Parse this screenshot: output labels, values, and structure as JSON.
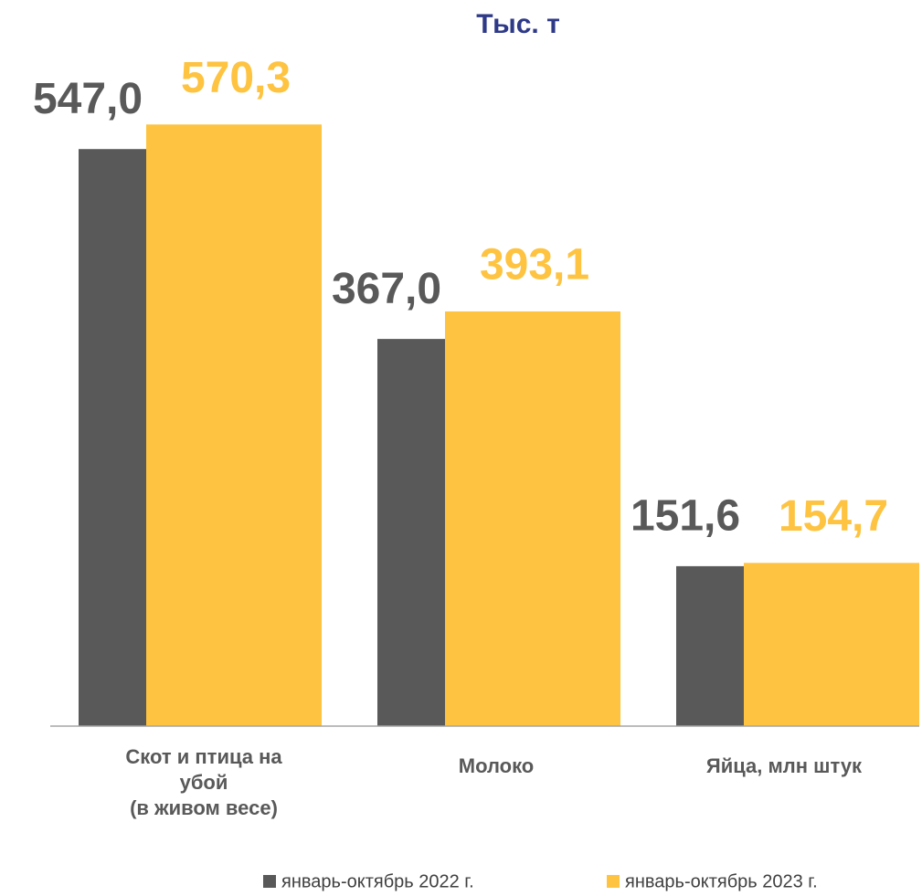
{
  "chart_data": {
    "type": "bar",
    "title": "Тыс. т",
    "categories": [
      "Скот и птица на\nубой\n(в живом весе)",
      "Молоко",
      "Яйца,  млн штук"
    ],
    "series": [
      {
        "name": "январь-октябрь 2022 г.",
        "color": "#595959",
        "values": [
          547.0,
          367.0,
          151.6
        ],
        "value_labels": [
          "547,0",
          "367,0",
          "151,6"
        ]
      },
      {
        "name": "январь-октябрь 2023 г.",
        "color": "#fec340",
        "values": [
          570.3,
          393.1,
          154.7
        ],
        "value_labels": [
          "570,3",
          "393,1",
          "154,7"
        ]
      }
    ],
    "ylim": [
      0,
      600
    ]
  }
}
